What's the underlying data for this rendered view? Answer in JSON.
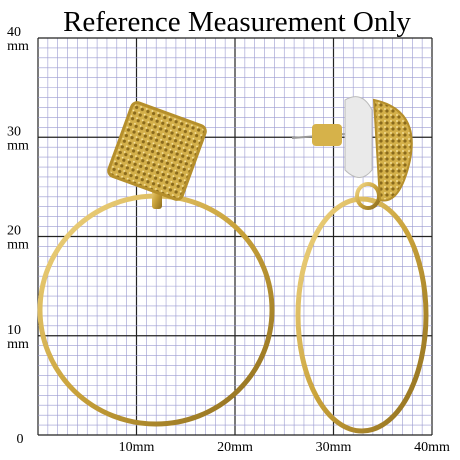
{
  "title": "Reference Measurement Only",
  "y_labels": [
    {
      "number": "40",
      "unit": "mm"
    },
    {
      "number": "30",
      "unit": "mm"
    },
    {
      "number": "20",
      "unit": "mm"
    },
    {
      "number": "10",
      "unit": "mm"
    },
    {
      "number": "0"
    }
  ],
  "x_labels": [
    "10mm",
    "20mm",
    "30mm",
    "40mm"
  ]
}
